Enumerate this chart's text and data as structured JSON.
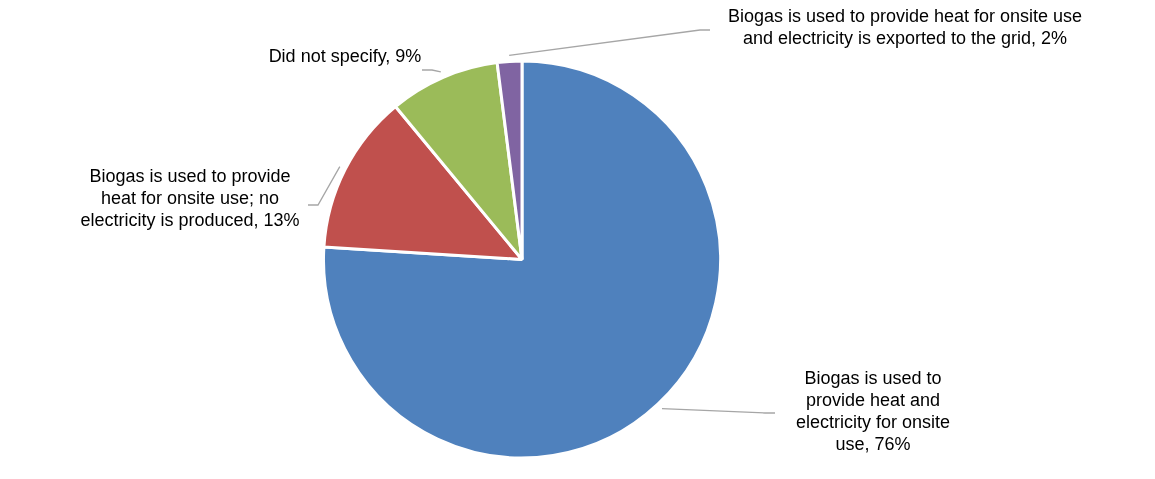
{
  "chart_data": {
    "type": "pie",
    "categories": [
      "Biogas is used to provide heat and electricity for onsite use",
      "Biogas is used to provide heat for onsite use; no electricity is produced",
      "Did not specify",
      "Biogas is used to provide heat for onsite use and electricity is exported to the grid"
    ],
    "values": [
      76,
      13,
      9,
      2
    ],
    "colors": [
      "#4f81bd",
      "#c0504d",
      "#9bbb59",
      "#8064a2"
    ],
    "value_labels": [
      "76%",
      "13%",
      "9%",
      "2%"
    ],
    "legend": false
  }
}
